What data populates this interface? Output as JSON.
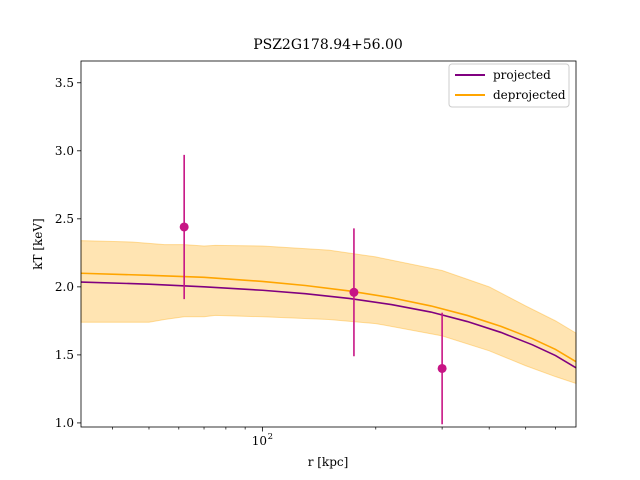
{
  "chart_data": {
    "type": "line",
    "title": "PSZ2G178.94+56.00",
    "xlabel": "r [kpc]",
    "ylabel": "kT [keV]",
    "xscale": "log",
    "xlim": [
      33,
      680
    ],
    "ylim": [
      0.97,
      3.66
    ],
    "yticks": [
      1.0,
      1.5,
      2.0,
      2.5,
      3.0,
      3.5
    ],
    "ytick_labels": [
      "1.0",
      "1.5",
      "2.0",
      "2.5",
      "3.0",
      "3.5"
    ],
    "xtick_major": [
      100
    ],
    "xtick_major_labels": [
      "10"
    ],
    "xtick_major_exponent": "2",
    "xtick_minor": [
      40,
      50,
      60,
      70,
      80,
      90,
      200,
      300,
      400,
      500,
      600
    ],
    "grid": false,
    "legend_position": "top-right",
    "series": [
      {
        "name": "projected",
        "color": "#800080",
        "x": [
          33,
          50,
          70,
          100,
          130,
          170,
          220,
          280,
          350,
          430,
          520,
          600,
          680
        ],
        "y": [
          2.035,
          2.02,
          2.0,
          1.975,
          1.95,
          1.915,
          1.87,
          1.815,
          1.745,
          1.665,
          1.575,
          1.495,
          1.405
        ]
      },
      {
        "name": "deprojected",
        "color": "#ffa500",
        "x": [
          33,
          50,
          70,
          100,
          130,
          170,
          220,
          280,
          350,
          430,
          520,
          600,
          680
        ],
        "y": [
          2.1,
          2.085,
          2.07,
          2.04,
          2.01,
          1.97,
          1.92,
          1.86,
          1.79,
          1.71,
          1.62,
          1.54,
          1.45
        ]
      }
    ],
    "band": {
      "color": "#ffa500",
      "x": [
        33,
        45,
        50,
        55,
        62,
        70,
        75,
        100,
        150,
        200,
        300,
        400,
        500,
        600,
        680
      ],
      "upper": [
        2.34,
        2.33,
        2.32,
        2.31,
        2.31,
        2.3,
        2.305,
        2.3,
        2.27,
        2.22,
        2.12,
        2.0,
        1.86,
        1.75,
        1.66
      ],
      "lower": [
        1.74,
        1.74,
        1.74,
        1.76,
        1.78,
        1.78,
        1.79,
        1.78,
        1.76,
        1.73,
        1.64,
        1.53,
        1.42,
        1.34,
        1.29
      ]
    },
    "data_points": {
      "color": "#c71585",
      "x": [
        62,
        175,
        300
      ],
      "y": [
        2.44,
        1.96,
        1.4
      ],
      "yerr_low": [
        0.53,
        0.47,
        0.41
      ],
      "yerr_high": [
        0.53,
        0.47,
        0.41
      ]
    }
  }
}
